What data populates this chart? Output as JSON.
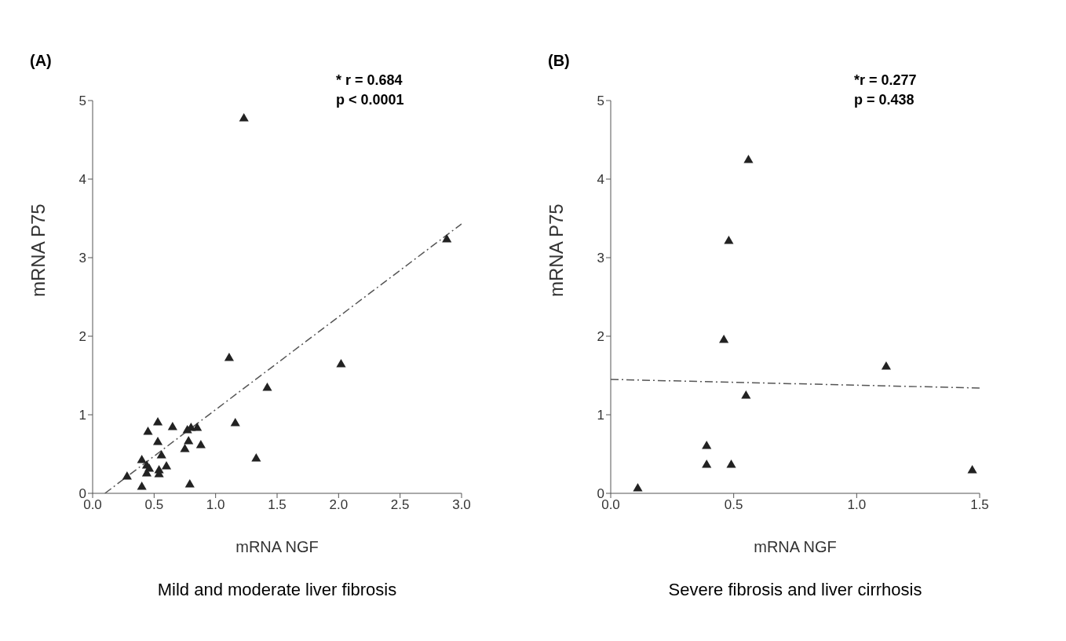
{
  "chart_data": [
    {
      "type": "scatter",
      "title": "(A)",
      "xlabel": "mRNA NGF",
      "ylabel": "mRNA P75",
      "annotations": [
        "* r = 0.684",
        "p < 0.0001",
        "Mild and moderate liver fibrosis"
      ],
      "xlim": [
        0,
        3
      ],
      "xticks": [
        {
          "value": 0,
          "label": "0.0"
        },
        {
          "value": 0.5,
          "label": "0.5"
        },
        {
          "value": 1,
          "label": "1.0"
        },
        {
          "value": 1.5,
          "label": "1.5"
        },
        {
          "value": 2,
          "label": "2.0"
        },
        {
          "value": 2.5,
          "label": "2.5"
        },
        {
          "value": 3,
          "label": "3.0"
        }
      ],
      "ylim": [
        0,
        5
      ],
      "yticks": [
        0,
        1,
        2,
        3,
        4,
        5
      ],
      "series": [
        {
          "marker": "triangle",
          "color": "#222222",
          "x": [
            1.23,
            2.88,
            1.11,
            2.02,
            1.42,
            1.16,
            1.33,
            0.53,
            0.45,
            0.65,
            0.53,
            0.77,
            0.8,
            0.85,
            0.78,
            0.75,
            0.88,
            0.56,
            0.4,
            0.44,
            0.46,
            0.44,
            0.54,
            0.54,
            0.6,
            0.28,
            0.4,
            0.79
          ],
          "values": [
            4.77,
            3.23,
            1.72,
            1.64,
            1.34,
            0.89,
            0.44,
            0.9,
            0.78,
            0.84,
            0.65,
            0.8,
            0.83,
            0.83,
            0.66,
            0.56,
            0.61,
            0.48,
            0.42,
            0.35,
            0.31,
            0.25,
            0.29,
            0.24,
            0.34,
            0.21,
            0.08,
            0.11
          ]
        },
        {
          "type": "line",
          "color": "#555555",
          "line_style": "dashed",
          "x": [
            0.1,
            3.0
          ],
          "values": [
            0,
            3.43
          ]
        }
      ]
    },
    {
      "type": "scatter",
      "title": "(B)",
      "xlabel": "mRNA NGF",
      "ylabel": "mRNA P75",
      "annotations": [
        "*r = 0.277",
        "p = 0.438",
        "Severe fibrosis and liver cirrhosis"
      ],
      "xlim": [
        0,
        1.5
      ],
      "xticks": [
        {
          "value": 0,
          "label": "0.0"
        },
        {
          "value": 0.5,
          "label": "0.5"
        },
        {
          "value": 1,
          "label": "1.0"
        },
        {
          "value": 1.5,
          "label": "1.5"
        }
      ],
      "ylim": [
        0,
        5
      ],
      "yticks": [
        0,
        1,
        2,
        3,
        4,
        5
      ],
      "series": [
        {
          "marker": "triangle",
          "color": "#222222",
          "x": [
            0.56,
            0.48,
            0.46,
            1.12,
            0.55,
            0.39,
            0.39,
            0.49,
            1.47,
            0.11
          ],
          "values": [
            4.24,
            3.21,
            1.95,
            1.61,
            1.24,
            0.6,
            0.36,
            0.36,
            0.29,
            0.06
          ]
        },
        {
          "type": "line",
          "color": "#555555",
          "line_style": "dashed",
          "x": [
            0,
            1.5
          ],
          "values": [
            1.45,
            1.34
          ]
        }
      ]
    }
  ]
}
